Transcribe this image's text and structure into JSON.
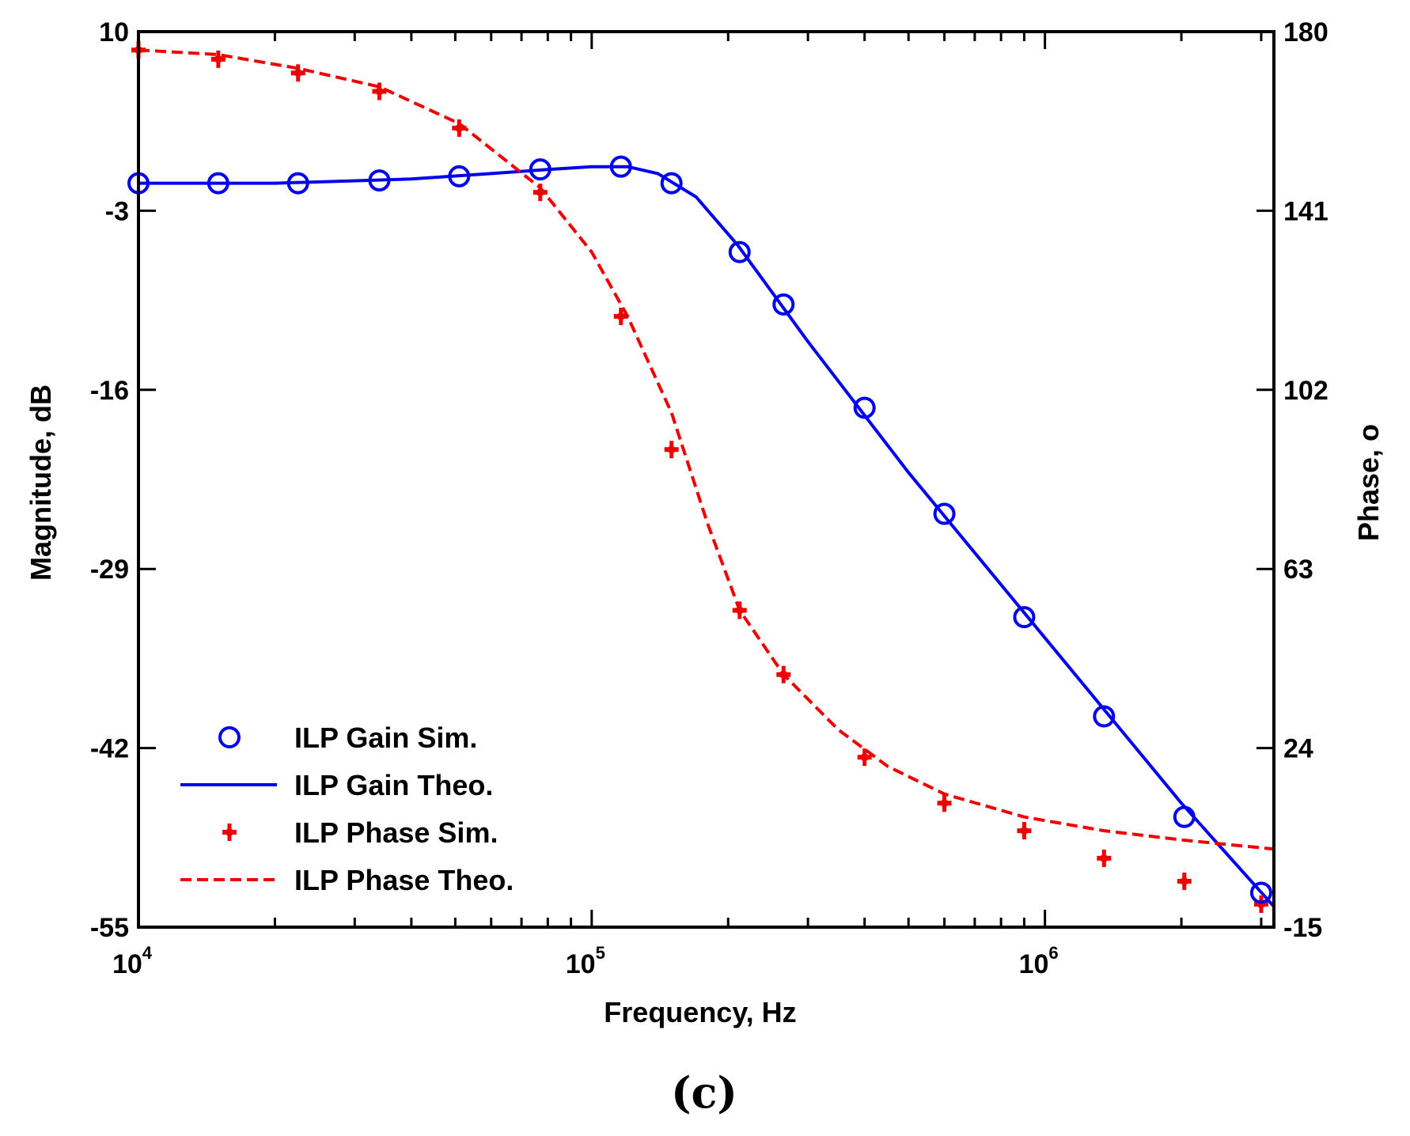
{
  "chart_data": {
    "type": "line",
    "title": "",
    "panel_label": "(c)",
    "xlabel": "Frequency, Hz",
    "ylabel_left": "Magnitude, dB",
    "ylabel_right": "Phase, o",
    "xscale": "log",
    "xlim": [
      10000,
      3200000
    ],
    "ylim_left": [
      -55,
      10
    ],
    "ylim_right": [
      -15,
      180
    ],
    "x_ticks": [
      {
        "value": 10000,
        "base": "10",
        "exp": "4"
      },
      {
        "value": 100000,
        "base": "10",
        "exp": "5"
      },
      {
        "value": 1000000,
        "base": "10",
        "exp": "6"
      }
    ],
    "y_ticks_left": [
      "10",
      "-3",
      "-16",
      "-29",
      "-42",
      "-55"
    ],
    "y_ticks_right": [
      "180",
      "141",
      "102",
      "63",
      "24",
      "-15"
    ],
    "legend_position": "bottom-left",
    "series": [
      {
        "name": "ILP Gain Sim.",
        "axis": "left",
        "style": "markers-circle",
        "color": "#0000ee",
        "x": [
          10000,
          15000,
          22500,
          34000,
          51000,
          77000,
          116000,
          150000,
          212000,
          265000,
          400000,
          600000,
          900000,
          1350000,
          2030000,
          3000000
        ],
        "y": [
          -1.0,
          -1.0,
          -1.0,
          -0.8,
          -0.5,
          0.0,
          0.2,
          -1.0,
          -6.0,
          -9.8,
          -17.3,
          -25.0,
          -32.5,
          -39.7,
          -47.0,
          -52.5
        ]
      },
      {
        "name": "ILP Gain Theo.",
        "axis": "left",
        "style": "solid-line",
        "color": "#0000ee",
        "x": [
          10000,
          20000,
          40000,
          60000,
          80000,
          100000,
          120000,
          140000,
          170000,
          210000,
          300000,
          500000,
          1000000,
          2000000,
          3200000
        ],
        "y": [
          -1.0,
          -1.0,
          -0.7,
          -0.3,
          0.0,
          0.2,
          0.2,
          -0.3,
          -2.0,
          -5.5,
          -12.5,
          -22.0,
          -34.0,
          -46.0,
          -53.5
        ]
      },
      {
        "name": "ILP Phase Sim.",
        "axis": "right",
        "style": "markers-plus",
        "color": "#ee0000",
        "x": [
          10000,
          15000,
          22500,
          34000,
          51000,
          77000,
          116000,
          150000,
          212000,
          265000,
          400000,
          600000,
          900000,
          1350000,
          2030000,
          3000000
        ],
        "y": [
          176,
          174,
          171,
          167,
          159,
          145,
          118,
          89,
          54,
          40,
          22,
          12,
          6,
          0,
          -5,
          -10
        ]
      },
      {
        "name": "ILP Phase Theo.",
        "axis": "right",
        "style": "dashed-line",
        "color": "#ee0000",
        "x": [
          10000,
          15000,
          22500,
          34000,
          51000,
          77000,
          100000,
          120000,
          150000,
          180000,
          212000,
          265000,
          350000,
          450000,
          600000,
          900000,
          1350000,
          2000000,
          3200000
        ],
        "y": [
          176,
          175,
          172,
          168,
          160,
          146,
          132,
          118,
          97,
          73,
          54,
          40,
          28,
          20,
          14,
          9,
          6,
          4,
          2
        ]
      }
    ]
  }
}
